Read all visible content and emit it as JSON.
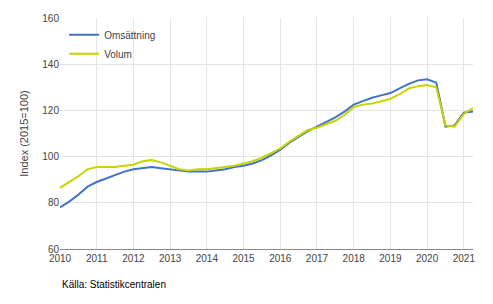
{
  "chart_data": {
    "type": "line",
    "ylabel": "Index (2015=100)",
    "source": "Källa: Statistikcentralen",
    "legend": "upper left",
    "grid": true,
    "xlim": [
      2010.0,
      2021.25
    ],
    "xticks": [
      2010,
      2011,
      2012,
      2013,
      2014,
      2015,
      2016,
      2017,
      2018,
      2019,
      2020,
      2021
    ],
    "ylim": [
      60,
      160
    ],
    "yticks": [
      60,
      80,
      100,
      120,
      140,
      160
    ],
    "x": [
      2010.0,
      2010.25,
      2010.5,
      2010.75,
      2011.0,
      2011.25,
      2011.5,
      2011.75,
      2012.0,
      2012.25,
      2012.5,
      2012.75,
      2013.0,
      2013.25,
      2013.5,
      2013.75,
      2014.0,
      2014.25,
      2014.5,
      2014.75,
      2015.0,
      2015.25,
      2015.5,
      2015.75,
      2016.0,
      2016.25,
      2016.5,
      2016.75,
      2017.0,
      2017.25,
      2017.5,
      2017.75,
      2018.0,
      2018.25,
      2018.5,
      2018.75,
      2019.0,
      2019.25,
      2019.5,
      2019.75,
      2020.0,
      2020.25,
      2020.5,
      2020.75,
      2021.0,
      2021.25
    ],
    "series": [
      {
        "name": "Omsättning",
        "color": "#4472c4",
        "values": [
          78.0,
          80.5,
          83.5,
          87.0,
          89.0,
          90.5,
          92.0,
          93.5,
          94.5,
          95.0,
          95.5,
          95.0,
          94.5,
          94.0,
          93.5,
          93.5,
          93.5,
          94.0,
          94.5,
          95.5,
          96.0,
          97.0,
          98.5,
          100.5,
          103.0,
          106.0,
          108.5,
          111.0,
          113.0,
          115.0,
          117.0,
          119.5,
          122.5,
          124.0,
          125.5,
          126.5,
          127.5,
          129.5,
          131.5,
          133.0,
          133.5,
          132.0,
          113.0,
          113.5,
          119.0,
          119.5
        ]
      },
      {
        "name": "Volum",
        "color": "#c8d400",
        "values": [
          86.5,
          89.0,
          91.5,
          94.5,
          95.5,
          95.5,
          95.5,
          96.0,
          96.5,
          98.0,
          98.5,
          97.5,
          96.0,
          94.5,
          94.0,
          94.5,
          94.5,
          95.0,
          95.5,
          96.0,
          97.0,
          98.0,
          99.5,
          101.5,
          103.5,
          106.5,
          109.0,
          111.5,
          112.5,
          114.0,
          115.5,
          118.0,
          121.5,
          122.5,
          123.0,
          124.0,
          125.0,
          127.0,
          129.5,
          130.5,
          131.0,
          130.0,
          113.5,
          113.0,
          118.5,
          121.0
        ]
      }
    ]
  }
}
